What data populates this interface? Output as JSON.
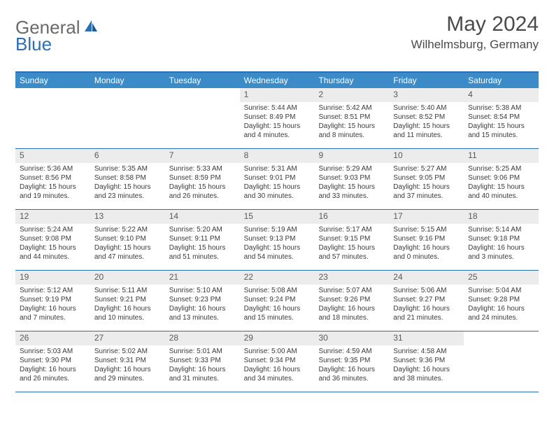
{
  "logo": {
    "part1": "General",
    "part2": "Blue"
  },
  "title": "May 2024",
  "location": "Wilhelmsburg, Germany",
  "colors": {
    "header_bar": "#3b8bc9",
    "rule": "#2a6fb5",
    "daynum_bg": "#ececec",
    "text": "#3a3a3a",
    "title_text": "#4a4a4a"
  },
  "dow": [
    "Sunday",
    "Monday",
    "Tuesday",
    "Wednesday",
    "Thursday",
    "Friday",
    "Saturday"
  ],
  "weeks": [
    [
      {
        "n": "",
        "sr": "",
        "ss": "",
        "dl": ""
      },
      {
        "n": "",
        "sr": "",
        "ss": "",
        "dl": ""
      },
      {
        "n": "",
        "sr": "",
        "ss": "",
        "dl": ""
      },
      {
        "n": "1",
        "sr": "Sunrise: 5:44 AM",
        "ss": "Sunset: 8:49 PM",
        "dl": "Daylight: 15 hours and 4 minutes."
      },
      {
        "n": "2",
        "sr": "Sunrise: 5:42 AM",
        "ss": "Sunset: 8:51 PM",
        "dl": "Daylight: 15 hours and 8 minutes."
      },
      {
        "n": "3",
        "sr": "Sunrise: 5:40 AM",
        "ss": "Sunset: 8:52 PM",
        "dl": "Daylight: 15 hours and 11 minutes."
      },
      {
        "n": "4",
        "sr": "Sunrise: 5:38 AM",
        "ss": "Sunset: 8:54 PM",
        "dl": "Daylight: 15 hours and 15 minutes."
      }
    ],
    [
      {
        "n": "5",
        "sr": "Sunrise: 5:36 AM",
        "ss": "Sunset: 8:56 PM",
        "dl": "Daylight: 15 hours and 19 minutes."
      },
      {
        "n": "6",
        "sr": "Sunrise: 5:35 AM",
        "ss": "Sunset: 8:58 PM",
        "dl": "Daylight: 15 hours and 23 minutes."
      },
      {
        "n": "7",
        "sr": "Sunrise: 5:33 AM",
        "ss": "Sunset: 8:59 PM",
        "dl": "Daylight: 15 hours and 26 minutes."
      },
      {
        "n": "8",
        "sr": "Sunrise: 5:31 AM",
        "ss": "Sunset: 9:01 PM",
        "dl": "Daylight: 15 hours and 30 minutes."
      },
      {
        "n": "9",
        "sr": "Sunrise: 5:29 AM",
        "ss": "Sunset: 9:03 PM",
        "dl": "Daylight: 15 hours and 33 minutes."
      },
      {
        "n": "10",
        "sr": "Sunrise: 5:27 AM",
        "ss": "Sunset: 9:05 PM",
        "dl": "Daylight: 15 hours and 37 minutes."
      },
      {
        "n": "11",
        "sr": "Sunrise: 5:25 AM",
        "ss": "Sunset: 9:06 PM",
        "dl": "Daylight: 15 hours and 40 minutes."
      }
    ],
    [
      {
        "n": "12",
        "sr": "Sunrise: 5:24 AM",
        "ss": "Sunset: 9:08 PM",
        "dl": "Daylight: 15 hours and 44 minutes."
      },
      {
        "n": "13",
        "sr": "Sunrise: 5:22 AM",
        "ss": "Sunset: 9:10 PM",
        "dl": "Daylight: 15 hours and 47 minutes."
      },
      {
        "n": "14",
        "sr": "Sunrise: 5:20 AM",
        "ss": "Sunset: 9:11 PM",
        "dl": "Daylight: 15 hours and 51 minutes."
      },
      {
        "n": "15",
        "sr": "Sunrise: 5:19 AM",
        "ss": "Sunset: 9:13 PM",
        "dl": "Daylight: 15 hours and 54 minutes."
      },
      {
        "n": "16",
        "sr": "Sunrise: 5:17 AM",
        "ss": "Sunset: 9:15 PM",
        "dl": "Daylight: 15 hours and 57 minutes."
      },
      {
        "n": "17",
        "sr": "Sunrise: 5:15 AM",
        "ss": "Sunset: 9:16 PM",
        "dl": "Daylight: 16 hours and 0 minutes."
      },
      {
        "n": "18",
        "sr": "Sunrise: 5:14 AM",
        "ss": "Sunset: 9:18 PM",
        "dl": "Daylight: 16 hours and 3 minutes."
      }
    ],
    [
      {
        "n": "19",
        "sr": "Sunrise: 5:12 AM",
        "ss": "Sunset: 9:19 PM",
        "dl": "Daylight: 16 hours and 7 minutes."
      },
      {
        "n": "20",
        "sr": "Sunrise: 5:11 AM",
        "ss": "Sunset: 9:21 PM",
        "dl": "Daylight: 16 hours and 10 minutes."
      },
      {
        "n": "21",
        "sr": "Sunrise: 5:10 AM",
        "ss": "Sunset: 9:23 PM",
        "dl": "Daylight: 16 hours and 13 minutes."
      },
      {
        "n": "22",
        "sr": "Sunrise: 5:08 AM",
        "ss": "Sunset: 9:24 PM",
        "dl": "Daylight: 16 hours and 15 minutes."
      },
      {
        "n": "23",
        "sr": "Sunrise: 5:07 AM",
        "ss": "Sunset: 9:26 PM",
        "dl": "Daylight: 16 hours and 18 minutes."
      },
      {
        "n": "24",
        "sr": "Sunrise: 5:06 AM",
        "ss": "Sunset: 9:27 PM",
        "dl": "Daylight: 16 hours and 21 minutes."
      },
      {
        "n": "25",
        "sr": "Sunrise: 5:04 AM",
        "ss": "Sunset: 9:28 PM",
        "dl": "Daylight: 16 hours and 24 minutes."
      }
    ],
    [
      {
        "n": "26",
        "sr": "Sunrise: 5:03 AM",
        "ss": "Sunset: 9:30 PM",
        "dl": "Daylight: 16 hours and 26 minutes."
      },
      {
        "n": "27",
        "sr": "Sunrise: 5:02 AM",
        "ss": "Sunset: 9:31 PM",
        "dl": "Daylight: 16 hours and 29 minutes."
      },
      {
        "n": "28",
        "sr": "Sunrise: 5:01 AM",
        "ss": "Sunset: 9:33 PM",
        "dl": "Daylight: 16 hours and 31 minutes."
      },
      {
        "n": "29",
        "sr": "Sunrise: 5:00 AM",
        "ss": "Sunset: 9:34 PM",
        "dl": "Daylight: 16 hours and 34 minutes."
      },
      {
        "n": "30",
        "sr": "Sunrise: 4:59 AM",
        "ss": "Sunset: 9:35 PM",
        "dl": "Daylight: 16 hours and 36 minutes."
      },
      {
        "n": "31",
        "sr": "Sunrise: 4:58 AM",
        "ss": "Sunset: 9:36 PM",
        "dl": "Daylight: 16 hours and 38 minutes."
      },
      {
        "n": "",
        "sr": "",
        "ss": "",
        "dl": ""
      }
    ]
  ]
}
